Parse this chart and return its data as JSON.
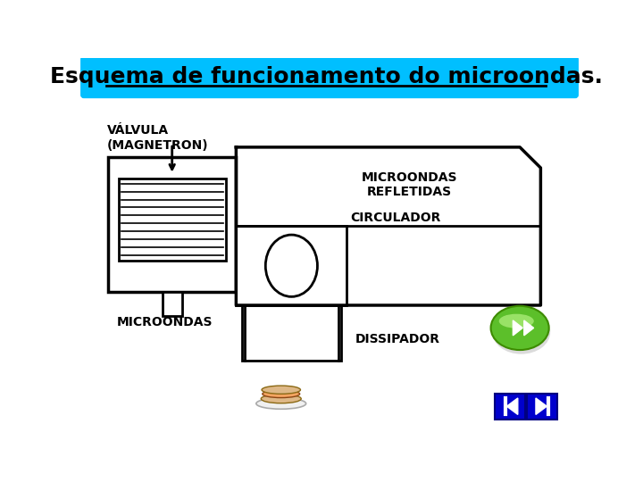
{
  "title": "Esquema de funcionamento do microondas.",
  "title_bg": "#00BFFF",
  "title_color": "#000000",
  "title_fontsize": 18,
  "bg_color": "#FFFFFF",
  "labels": {
    "valvula": "VÁLVULA\n(MAGNETRON)",
    "microondas_refletidas": "MICROONDAS\nREFLETIDAS",
    "circulador": "CIRCULADOR",
    "microondas": "MICROONDAS",
    "dissipador": "DISSIPADOR"
  },
  "label_fontsize": 10,
  "line_color": "#000000",
  "line_width": 2.0
}
